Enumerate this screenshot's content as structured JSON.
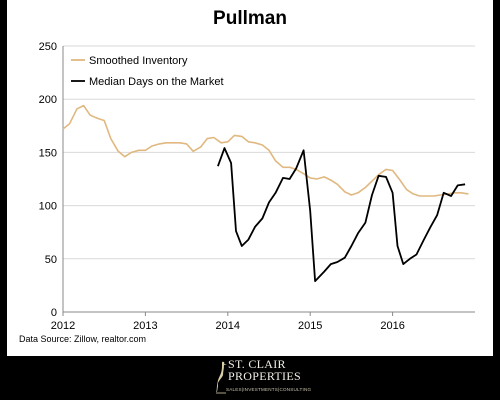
{
  "chart_data": {
    "type": "line",
    "title": "Pullman",
    "xlabel": "",
    "ylabel": "",
    "x_ticks": [
      "2012",
      "2013",
      "2014",
      "2015",
      "2016"
    ],
    "y_ticks": [
      0,
      50,
      100,
      150,
      200,
      250
    ],
    "xlim": [
      2012.0,
      2017.0
    ],
    "ylim": [
      0,
      250
    ],
    "grid": "horizontal",
    "legend_position": "top-left",
    "series": [
      {
        "name": "Smoothed Inventory",
        "color": "#e0b880",
        "points": [
          [
            2012.0,
            172
          ],
          [
            2012.08,
            177
          ],
          [
            2012.17,
            191
          ],
          [
            2012.25,
            194
          ],
          [
            2012.33,
            185
          ],
          [
            2012.42,
            182
          ],
          [
            2012.5,
            180
          ],
          [
            2012.58,
            163
          ],
          [
            2012.67,
            151
          ],
          [
            2012.75,
            146
          ],
          [
            2012.83,
            150
          ],
          [
            2012.92,
            152
          ],
          [
            2013.0,
            152
          ],
          [
            2013.08,
            156
          ],
          [
            2013.17,
            158
          ],
          [
            2013.25,
            159
          ],
          [
            2013.33,
            159
          ],
          [
            2013.42,
            159
          ],
          [
            2013.5,
            158
          ],
          [
            2013.58,
            151
          ],
          [
            2013.67,
            155
          ],
          [
            2013.75,
            163
          ],
          [
            2013.83,
            164
          ],
          [
            2013.92,
            159
          ],
          [
            2014.0,
            160
          ],
          [
            2014.08,
            166
          ],
          [
            2014.17,
            165
          ],
          [
            2014.25,
            160
          ],
          [
            2014.33,
            159
          ],
          [
            2014.42,
            157
          ],
          [
            2014.5,
            152
          ],
          [
            2014.58,
            142
          ],
          [
            2014.67,
            136
          ],
          [
            2014.75,
            136
          ],
          [
            2014.83,
            134
          ],
          [
            2014.92,
            130
          ],
          [
            2015.0,
            126
          ],
          [
            2015.08,
            125
          ],
          [
            2015.17,
            127
          ],
          [
            2015.25,
            124
          ],
          [
            2015.33,
            120
          ],
          [
            2015.42,
            113
          ],
          [
            2015.5,
            110
          ],
          [
            2015.58,
            112
          ],
          [
            2015.67,
            117
          ],
          [
            2015.75,
            123
          ],
          [
            2015.83,
            129
          ],
          [
            2015.92,
            134
          ],
          [
            2016.0,
            133
          ],
          [
            2016.08,
            125
          ],
          [
            2016.17,
            115
          ],
          [
            2016.25,
            111
          ],
          [
            2016.33,
            109
          ],
          [
            2016.42,
            109
          ],
          [
            2016.5,
            109
          ],
          [
            2016.58,
            110
          ],
          [
            2016.67,
            111
          ],
          [
            2016.75,
            112
          ],
          [
            2016.83,
            112
          ],
          [
            2016.92,
            111
          ]
        ]
      },
      {
        "name": "Median Days on the Market",
        "color": "#000000",
        "points": [
          [
            2013.88,
            137
          ],
          [
            2013.96,
            154
          ],
          [
            2014.04,
            140
          ],
          [
            2014.1,
            76
          ],
          [
            2014.17,
            62
          ],
          [
            2014.25,
            68
          ],
          [
            2014.33,
            80
          ],
          [
            2014.42,
            88
          ],
          [
            2014.5,
            103
          ],
          [
            2014.58,
            112
          ],
          [
            2014.67,
            126
          ],
          [
            2014.75,
            125
          ],
          [
            2014.83,
            135
          ],
          [
            2014.92,
            152
          ],
          [
            2015.0,
            95
          ],
          [
            2015.06,
            29
          ],
          [
            2015.17,
            38
          ],
          [
            2015.25,
            45
          ],
          [
            2015.33,
            47
          ],
          [
            2015.42,
            51
          ],
          [
            2015.5,
            62
          ],
          [
            2015.58,
            74
          ],
          [
            2015.67,
            84
          ],
          [
            2015.75,
            110
          ],
          [
            2015.83,
            128
          ],
          [
            2015.92,
            127
          ],
          [
            2016.0,
            112
          ],
          [
            2016.06,
            62
          ],
          [
            2016.13,
            45
          ],
          [
            2016.21,
            50
          ],
          [
            2016.29,
            54
          ],
          [
            2016.38,
            68
          ],
          [
            2016.46,
            80
          ],
          [
            2016.54,
            91
          ],
          [
            2016.62,
            112
          ],
          [
            2016.71,
            109
          ],
          [
            2016.79,
            119
          ],
          [
            2016.88,
            120
          ]
        ]
      }
    ]
  },
  "source_note": "Data Source: Zillow, realtor.com",
  "logo": {
    "name_line1": "ST. CLAIR",
    "name_line2": "PROPERTIES",
    "tagline": "SALES|INVESTMENTS|CONSULTING",
    "color": "#c9c2ac"
  },
  "colors": {
    "background": "#000000",
    "panel": "#ffffff",
    "gridline": "#d9d9d9",
    "axis": "#888888"
  }
}
